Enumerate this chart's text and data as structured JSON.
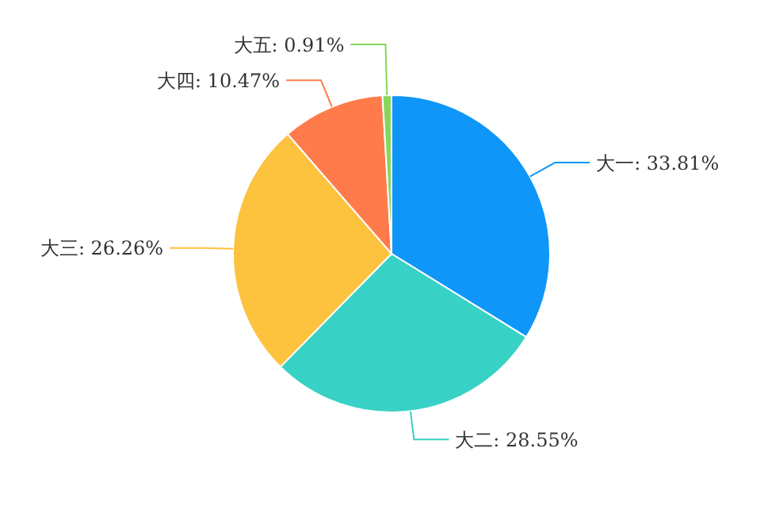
{
  "chart_data": {
    "type": "pie",
    "categories": [
      "大一",
      "大二",
      "大三",
      "大四",
      "大五"
    ],
    "values": [
      33.81,
      28.55,
      26.26,
      10.47,
      0.91
    ],
    "value_labels": [
      "33.81%",
      "28.55%",
      "26.26%",
      "10.47%",
      "0.91%"
    ],
    "colors": [
      "#0e96f8",
      "#38d1c5",
      "#fdc23e",
      "#ff7b4b",
      "#86d65a"
    ]
  }
}
